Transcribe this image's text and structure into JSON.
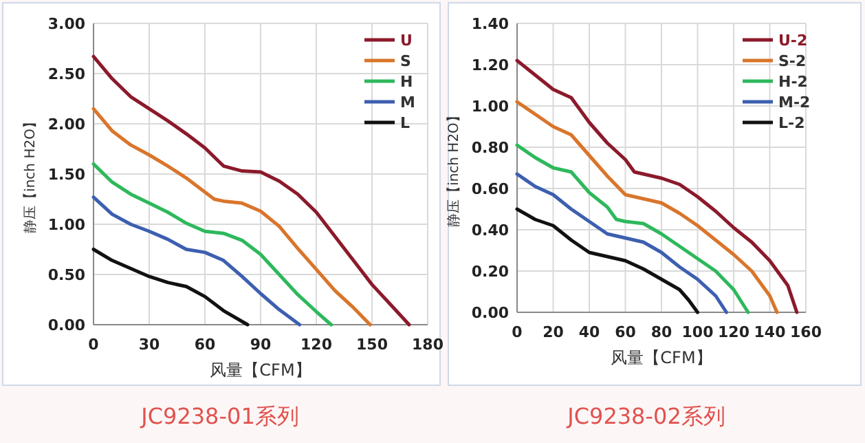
{
  "chart_data": [
    {
      "type": "line",
      "title": "JC9238-01系列",
      "xlabel": "风量【CFM】",
      "ylabel": "静压【inch H2O】",
      "xlim": [
        0,
        180
      ],
      "xticks": [
        0,
        30,
        60,
        90,
        120,
        150,
        180
      ],
      "ylim": [
        0,
        3
      ],
      "yticks": [
        {
          "value": 0,
          "label": "0.00"
        },
        {
          "value": 0.5,
          "label": "0.50"
        },
        {
          "value": 1,
          "label": "1.00"
        },
        {
          "value": 1.5,
          "label": "1.50"
        },
        {
          "value": 2,
          "label": "2.00"
        },
        {
          "value": 2.5,
          "label": "2.50"
        },
        {
          "value": 3,
          "label": "3.00"
        }
      ],
      "grid": true,
      "legend": "top right",
      "series": [
        {
          "name": "U",
          "color": "#8b1a2b",
          "x": [
            0,
            10,
            20,
            30,
            40,
            50,
            60,
            70,
            80,
            90,
            100,
            110,
            120,
            130,
            140,
            150,
            160,
            170
          ],
          "values": [
            2.67,
            2.45,
            2.27,
            2.15,
            2.03,
            1.9,
            1.76,
            1.58,
            1.53,
            1.52,
            1.43,
            1.3,
            1.12,
            0.88,
            0.64,
            0.4,
            0.2,
            0
          ]
        },
        {
          "name": "S",
          "color": "#d9752b",
          "x": [
            0,
            10,
            20,
            30,
            40,
            50,
            60,
            65,
            70,
            80,
            90,
            100,
            110,
            120,
            130,
            140,
            149
          ],
          "values": [
            2.15,
            1.93,
            1.79,
            1.69,
            1.58,
            1.46,
            1.32,
            1.25,
            1.23,
            1.21,
            1.13,
            0.98,
            0.76,
            0.55,
            0.34,
            0.17,
            0
          ]
        },
        {
          "name": "H",
          "color": "#2eb85c",
          "x": [
            0,
            10,
            20,
            30,
            40,
            50,
            60,
            70,
            80,
            90,
            100,
            110,
            120,
            128
          ],
          "values": [
            1.6,
            1.42,
            1.3,
            1.21,
            1.12,
            1.01,
            0.93,
            0.91,
            0.84,
            0.7,
            0.5,
            0.3,
            0.13,
            0
          ]
        },
        {
          "name": "M",
          "color": "#3d5fb0",
          "x": [
            0,
            10,
            20,
            30,
            40,
            50,
            60,
            70,
            80,
            90,
            100,
            111
          ],
          "values": [
            1.27,
            1.1,
            1.0,
            0.93,
            0.85,
            0.75,
            0.72,
            0.64,
            0.48,
            0.31,
            0.15,
            0
          ]
        },
        {
          "name": "L",
          "color": "#111111",
          "x": [
            0,
            10,
            20,
            30,
            40,
            50,
            60,
            70,
            83
          ],
          "values": [
            0.75,
            0.64,
            0.56,
            0.48,
            0.42,
            0.38,
            0.28,
            0.14,
            0
          ]
        }
      ]
    },
    {
      "type": "line",
      "title": "JC9238-02系列",
      "xlabel": "风量【CFM】",
      "ylabel": "静压【inch H2O】",
      "xlim": [
        0,
        160
      ],
      "xticks": [
        0,
        20,
        40,
        60,
        80,
        100,
        120,
        140,
        160
      ],
      "ylim": [
        0,
        1.4
      ],
      "yticks": [
        {
          "value": 0,
          "label": "0.00"
        },
        {
          "value": 0.2,
          "label": "0.20"
        },
        {
          "value": 0.4,
          "label": "0.40"
        },
        {
          "value": 0.6,
          "label": "0.60"
        },
        {
          "value": 0.8,
          "label": "0.80"
        },
        {
          "value": 1,
          "label": "1.00"
        },
        {
          "value": 1.2,
          "label": "1.20"
        },
        {
          "value": 1.4,
          "label": "1.40"
        }
      ],
      "grid": true,
      "legend": "top right",
      "series": [
        {
          "name": "U-2",
          "color": "#8b1a2b",
          "x": [
            0,
            10,
            20,
            30,
            40,
            50,
            60,
            65,
            70,
            80,
            90,
            100,
            110,
            120,
            130,
            140,
            150,
            155
          ],
          "values": [
            1.22,
            1.15,
            1.08,
            1.04,
            0.92,
            0.82,
            0.74,
            0.68,
            0.67,
            0.65,
            0.62,
            0.56,
            0.49,
            0.41,
            0.34,
            0.25,
            0.13,
            0
          ]
        },
        {
          "name": "S-2",
          "color": "#d9752b",
          "x": [
            0,
            10,
            20,
            30,
            40,
            50,
            60,
            70,
            80,
            90,
            100,
            110,
            120,
            130,
            140,
            144
          ],
          "values": [
            1.02,
            0.96,
            0.9,
            0.86,
            0.76,
            0.66,
            0.57,
            0.55,
            0.53,
            0.48,
            0.42,
            0.35,
            0.28,
            0.2,
            0.08,
            0
          ]
        },
        {
          "name": "H-2",
          "color": "#2eb85c",
          "x": [
            0,
            10,
            20,
            30,
            40,
            50,
            55,
            60,
            70,
            80,
            90,
            100,
            110,
            120,
            128
          ],
          "values": [
            0.81,
            0.75,
            0.7,
            0.68,
            0.58,
            0.51,
            0.45,
            0.44,
            0.43,
            0.38,
            0.32,
            0.26,
            0.2,
            0.11,
            0
          ]
        },
        {
          "name": "M-2",
          "color": "#3d5fb0",
          "x": [
            0,
            10,
            20,
            30,
            40,
            50,
            60,
            70,
            80,
            90,
            100,
            110,
            116
          ],
          "values": [
            0.67,
            0.61,
            0.57,
            0.5,
            0.44,
            0.38,
            0.36,
            0.34,
            0.29,
            0.22,
            0.16,
            0.08,
            0
          ]
        },
        {
          "name": "L-2",
          "color": "#111111",
          "x": [
            0,
            10,
            20,
            30,
            40,
            50,
            60,
            70,
            80,
            90,
            95,
            100
          ],
          "values": [
            0.5,
            0.45,
            0.42,
            0.35,
            0.29,
            0.27,
            0.25,
            0.21,
            0.16,
            0.11,
            0.06,
            0
          ]
        }
      ]
    }
  ]
}
